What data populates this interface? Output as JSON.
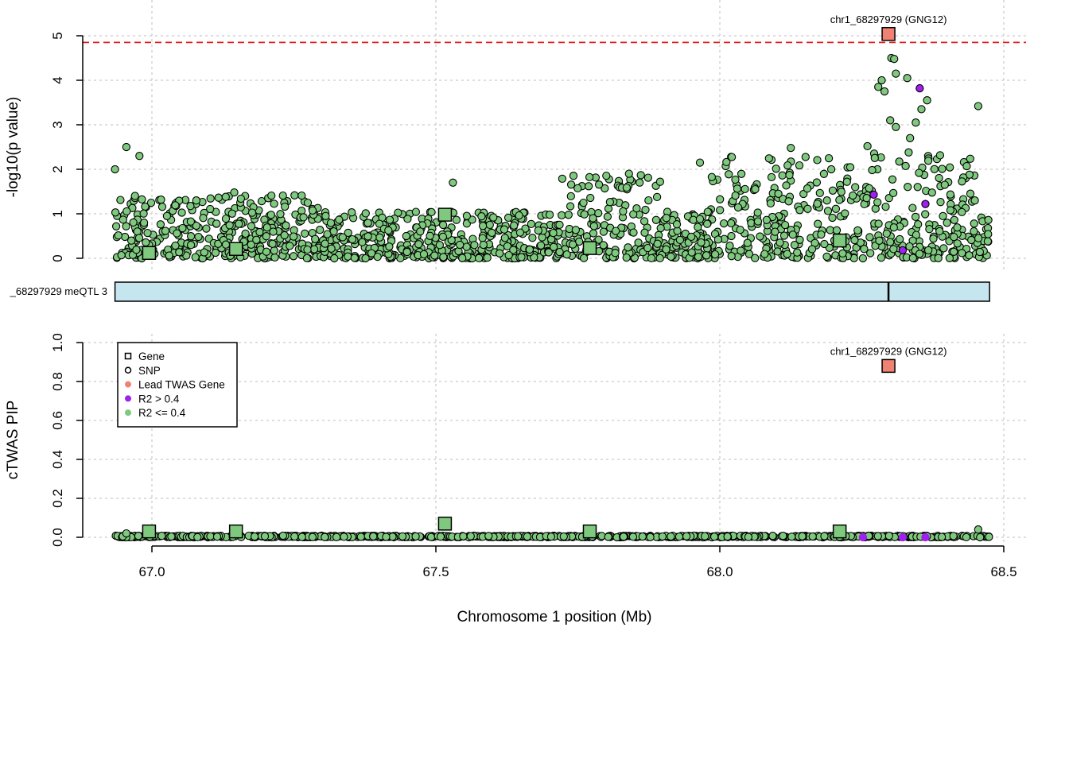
{
  "chart_data": {
    "type": "scatter",
    "colors": {
      "lead_gene": "#F08273",
      "r2_high": "#A020F0",
      "r2_low": "#7FC97F",
      "threshold": "#E41A1C",
      "track_fill": "#C6E6EF"
    },
    "xlabel": "Chromosome 1 position (Mb)",
    "xlim": [
      66.9,
      68.55
    ],
    "x_ticks": [
      "67.0",
      "67.5",
      "68.0",
      "68.5"
    ],
    "x_tick_values": [
      67.0,
      67.5,
      68.0,
      68.5
    ],
    "top_panel": {
      "ylabel": "-log10(p value)",
      "ylim": [
        0,
        5
      ],
      "y_ticks": [
        "0",
        "1",
        "2",
        "3",
        "4",
        "5"
      ],
      "y_tick_values": [
        0,
        1,
        2,
        3,
        4,
        5
      ],
      "threshold": 4.85,
      "lead_label": "chr1_68297929 (GNG12)",
      "genes": [
        {
          "x": 66.995,
          "y": 0.12,
          "lead": false
        },
        {
          "x": 67.148,
          "y": 0.21,
          "lead": false
        },
        {
          "x": 67.516,
          "y": 0.98,
          "lead": false
        },
        {
          "x": 67.771,
          "y": 0.23,
          "lead": false
        },
        {
          "x": 68.211,
          "y": 0.4,
          "lead": false
        },
        {
          "x": 68.297,
          "y": 5.04,
          "lead": true
        }
      ],
      "highlighted_snps": [
        {
          "x": 68.271,
          "y": 1.43,
          "r2": "high"
        },
        {
          "x": 68.352,
          "y": 3.82,
          "r2": "high"
        },
        {
          "x": 68.362,
          "y": 1.22,
          "r2": "high"
        },
        {
          "x": 68.322,
          "y": 0.18,
          "r2": "high"
        },
        {
          "x": 68.302,
          "y": 4.5,
          "r2": "low"
        },
        {
          "x": 68.307,
          "y": 4.48,
          "r2": "low"
        },
        {
          "x": 68.285,
          "y": 4.0,
          "r2": "low"
        },
        {
          "x": 68.279,
          "y": 3.85,
          "r2": "low"
        },
        {
          "x": 68.29,
          "y": 3.75,
          "r2": "low"
        },
        {
          "x": 68.31,
          "y": 4.15,
          "r2": "low"
        },
        {
          "x": 68.33,
          "y": 4.05,
          "r2": "low"
        },
        {
          "x": 68.3,
          "y": 3.1,
          "r2": "low"
        },
        {
          "x": 68.31,
          "y": 2.95,
          "r2": "low"
        },
        {
          "x": 68.335,
          "y": 2.7,
          "r2": "low"
        },
        {
          "x": 68.345,
          "y": 3.05,
          "r2": "low"
        },
        {
          "x": 68.355,
          "y": 3.35,
          "r2": "low"
        },
        {
          "x": 68.365,
          "y": 3.55,
          "r2": "low"
        },
        {
          "x": 68.455,
          "y": 3.42,
          "r2": "low"
        },
        {
          "x": 66.935,
          "y": 2.0,
          "r2": "low"
        },
        {
          "x": 66.955,
          "y": 2.5,
          "r2": "low"
        },
        {
          "x": 66.978,
          "y": 2.3,
          "r2": "low"
        },
        {
          "x": 67.965,
          "y": 2.15,
          "r2": "low"
        },
        {
          "x": 68.26,
          "y": 2.52,
          "r2": "low"
        },
        {
          "x": 68.125,
          "y": 2.48,
          "r2": "low"
        },
        {
          "x": 67.53,
          "y": 1.7,
          "r2": "low"
        },
        {
          "x": 67.145,
          "y": 1.48,
          "r2": "low"
        },
        {
          "x": 67.84,
          "y": 1.9,
          "r2": "low"
        }
      ]
    },
    "track": {
      "label": "_68297929 meQTL 3",
      "range": [
        66.935,
        68.475
      ],
      "marker": 68.297
    },
    "bottom_panel": {
      "ylabel": "cTWAS PIP",
      "ylim": [
        0,
        1
      ],
      "y_ticks": [
        "0.0",
        "0.2",
        "0.4",
        "0.6",
        "0.8",
        "1.0"
      ],
      "y_tick_values": [
        0,
        0.2,
        0.4,
        0.6,
        0.8,
        1.0
      ],
      "lead_label": "chr1_68297929 (GNG12)",
      "genes": [
        {
          "x": 66.995,
          "y": 0.03,
          "lead": false
        },
        {
          "x": 67.148,
          "y": 0.03,
          "lead": false
        },
        {
          "x": 67.516,
          "y": 0.07,
          "lead": false
        },
        {
          "x": 67.771,
          "y": 0.03,
          "lead": false
        },
        {
          "x": 68.211,
          "y": 0.03,
          "lead": false
        },
        {
          "x": 68.297,
          "y": 0.88,
          "lead": true
        }
      ],
      "highlighted_snps": [
        {
          "x": 68.252,
          "y": 0.0,
          "r2": "high"
        },
        {
          "x": 68.322,
          "y": 0.0,
          "r2": "high"
        },
        {
          "x": 68.362,
          "y": 0.0,
          "r2": "high"
        },
        {
          "x": 68.455,
          "y": 0.04,
          "r2": "low"
        },
        {
          "x": 66.955,
          "y": 0.02,
          "r2": "low"
        }
      ]
    },
    "legend": {
      "position": "top-left of bottom panel",
      "entries": [
        {
          "label": "Gene",
          "symbol": "square"
        },
        {
          "label": "SNP",
          "symbol": "circle"
        },
        {
          "label": "Lead TWAS Gene",
          "symbol": "dot-lead"
        },
        {
          "label": "R2 > 0.4",
          "symbol": "dot-high"
        },
        {
          "label": "R2 <= 0.4",
          "symbol": "dot-low"
        }
      ]
    }
  }
}
